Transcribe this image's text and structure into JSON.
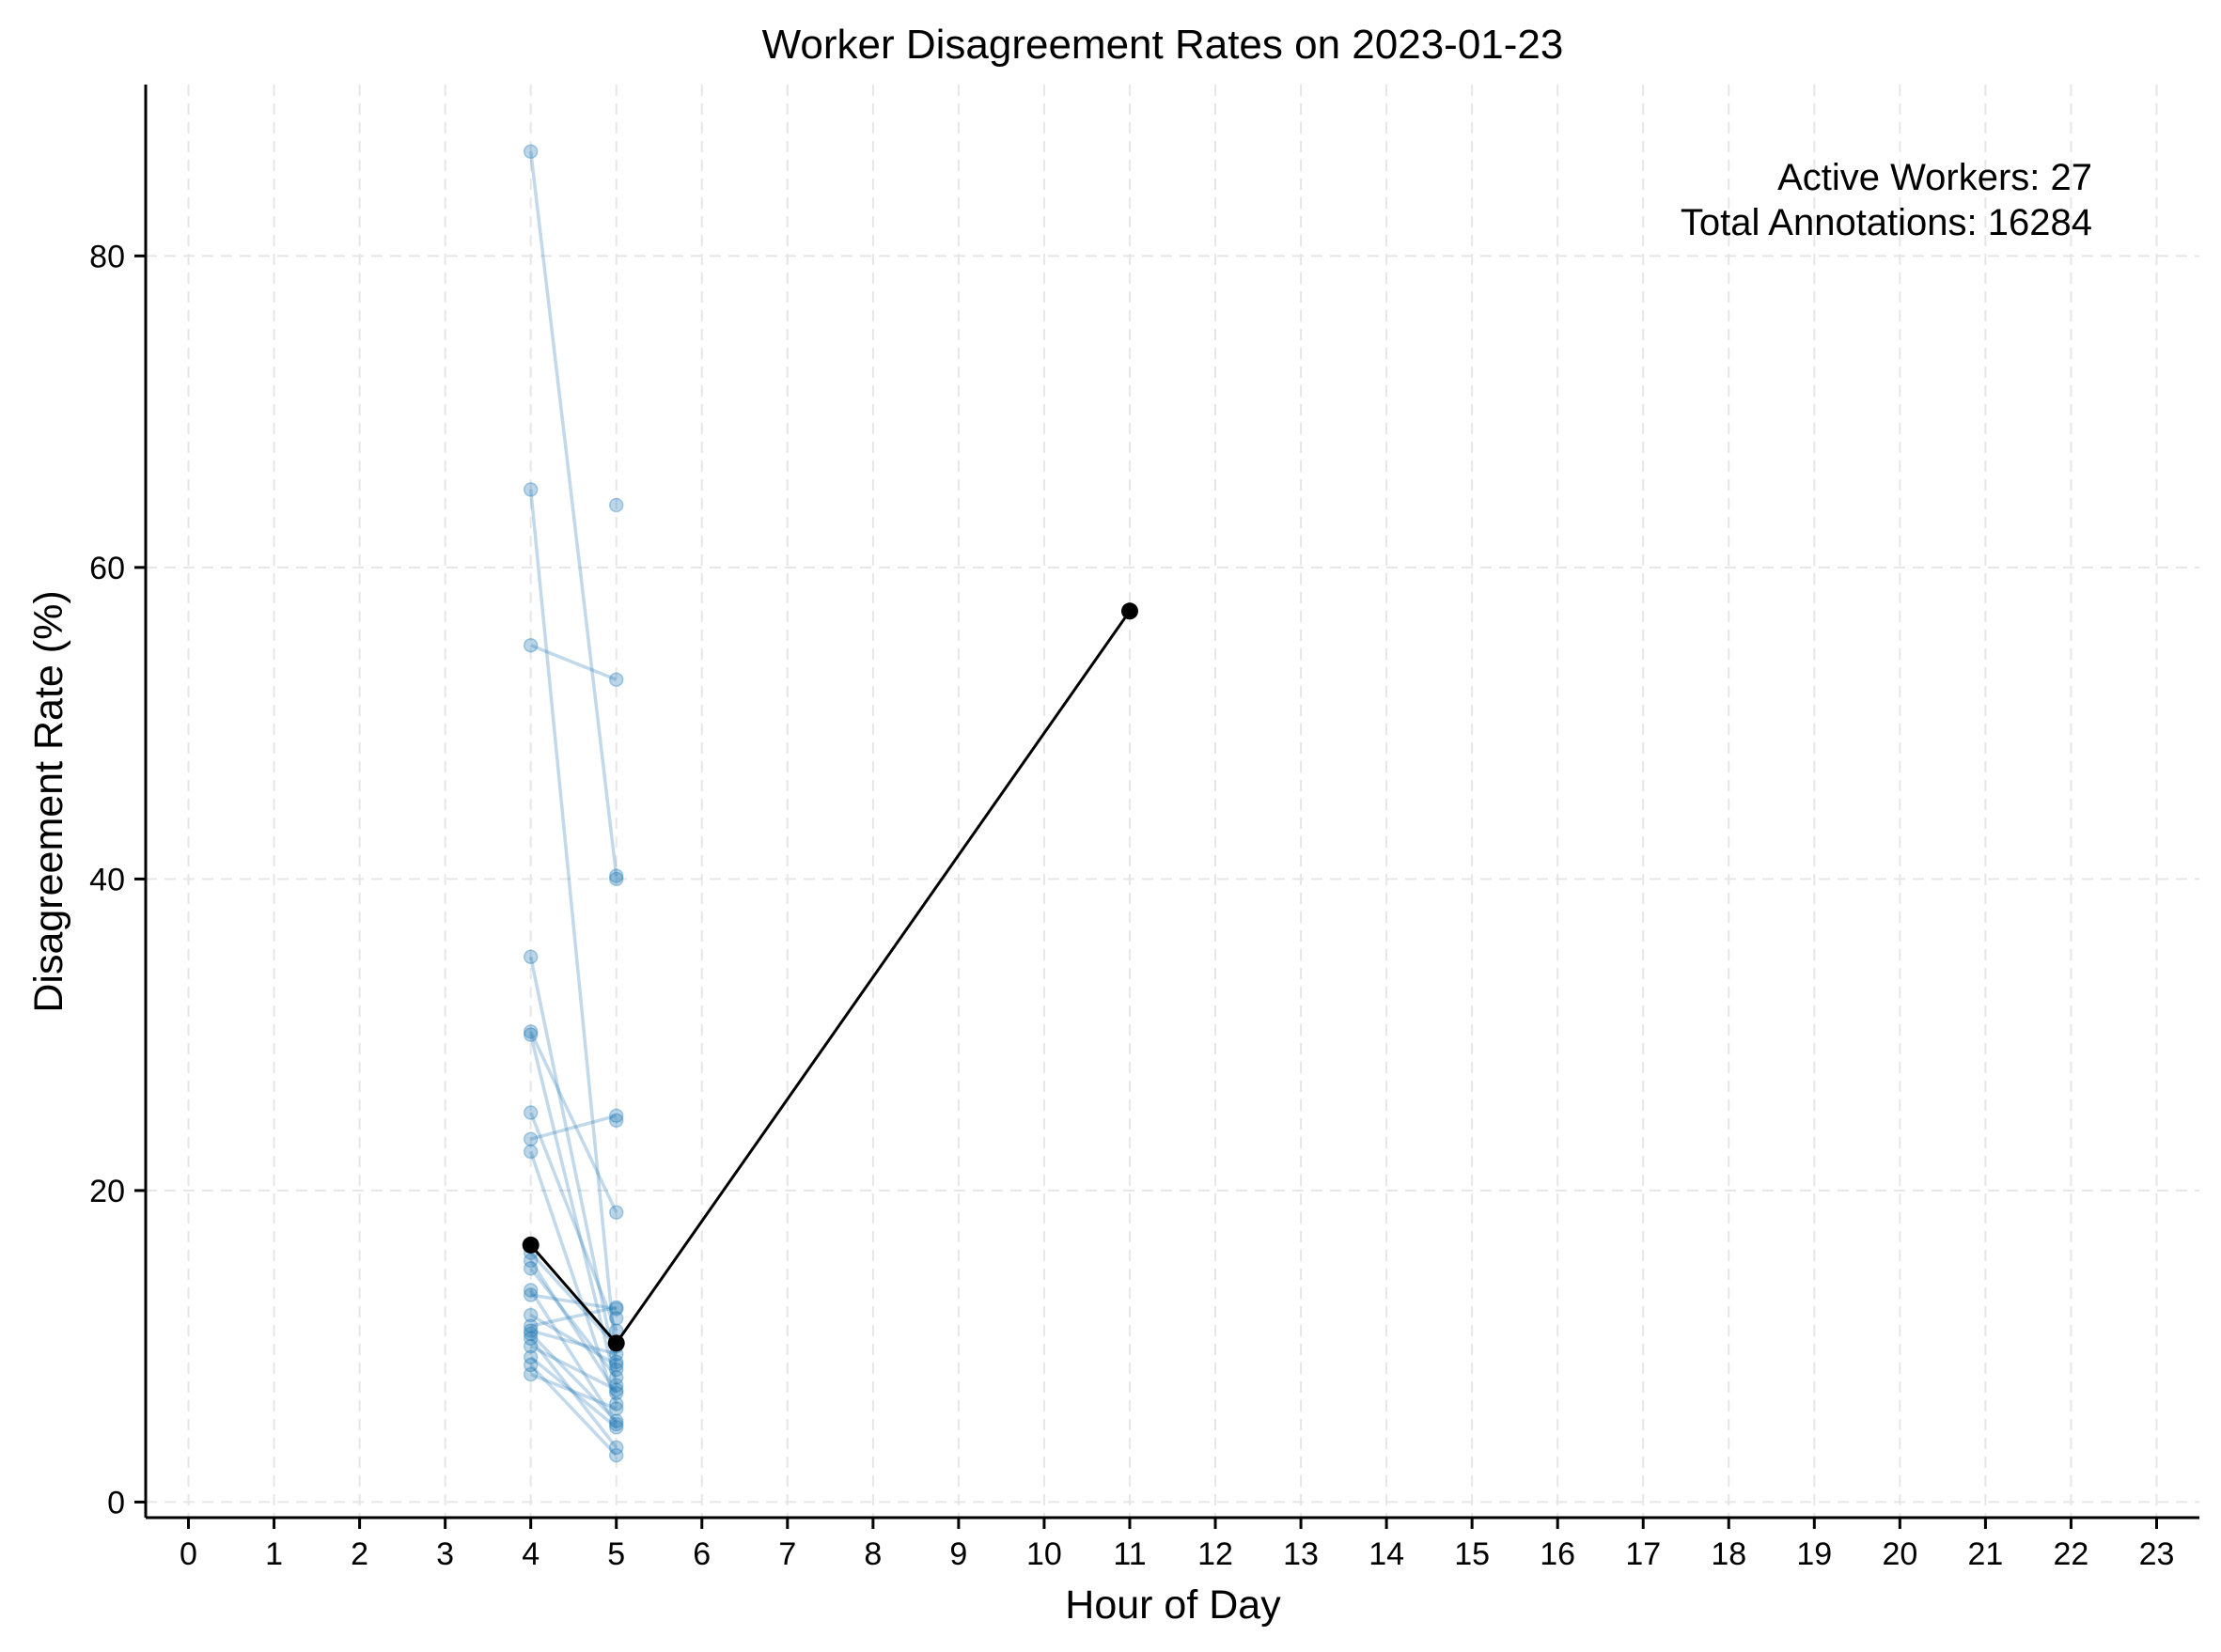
{
  "chart_data": {
    "type": "line",
    "title": "Worker Disagreement Rates on 2023-01-23",
    "xlabel": "Hour of Day",
    "ylabel": "Disagreement Rate (%)",
    "xlim": [
      -0.5,
      23.5
    ],
    "ylim": [
      -1,
      91
    ],
    "xticks": [
      0,
      1,
      2,
      3,
      4,
      5,
      6,
      7,
      8,
      9,
      10,
      11,
      12,
      13,
      14,
      15,
      16,
      17,
      18,
      19,
      20,
      21,
      22,
      23
    ],
    "yticks": [
      0,
      20,
      40,
      60,
      80
    ],
    "grid": true,
    "annotation": {
      "active_workers": "Active Workers: 27",
      "total_annotations": "Total Annotations: 16284"
    },
    "worker_series": [
      {
        "x": [
          4,
          5
        ],
        "y": [
          86.7,
          40.2
        ]
      },
      {
        "x": [
          4,
          5
        ],
        "y": [
          65.0,
          9.0
        ]
      },
      {
        "x": [
          4,
          5
        ],
        "y": [
          55.0,
          52.8
        ]
      },
      {
        "x": [
          4,
          5
        ],
        "y": [
          35.0,
          8.5
        ]
      },
      {
        "x": [
          4,
          5
        ],
        "y": [
          30.2,
          18.6
        ]
      },
      {
        "x": [
          4,
          5
        ],
        "y": [
          30.0,
          7.5
        ]
      },
      {
        "x": [
          4,
          5
        ],
        "y": [
          25.0,
          11.0
        ]
      },
      {
        "x": [
          4,
          5
        ],
        "y": [
          23.3,
          24.8
        ]
      },
      {
        "x": [
          4,
          5
        ],
        "y": [
          22.5,
          6.3
        ]
      },
      {
        "x": [
          4,
          5
        ],
        "y": [
          16.0,
          10.0
        ]
      },
      {
        "x": [
          4,
          5
        ],
        "y": [
          15.5,
          7.0
        ]
      },
      {
        "x": [
          4,
          5
        ],
        "y": [
          15.0,
          8.0
        ]
      },
      {
        "x": [
          4,
          5
        ],
        "y": [
          13.6,
          5.0
        ]
      },
      {
        "x": [
          4,
          5
        ],
        "y": [
          13.3,
          12.4
        ]
      },
      {
        "x": [
          4,
          5
        ],
        "y": [
          12.0,
          8.8
        ]
      },
      {
        "x": [
          4,
          5
        ],
        "y": [
          11.3,
          12.5
        ]
      },
      {
        "x": [
          4,
          5
        ],
        "y": [
          11.0,
          9.5
        ]
      },
      {
        "x": [
          4,
          5
        ],
        "y": [
          10.8,
          5.2
        ]
      },
      {
        "x": [
          4,
          5
        ],
        "y": [
          10.5,
          3.5
        ]
      },
      {
        "x": [
          4,
          5
        ],
        "y": [
          10.0,
          7.2
        ]
      },
      {
        "x": [
          4,
          5
        ],
        "y": [
          9.3,
          4.8
        ]
      },
      {
        "x": [
          4,
          5
        ],
        "y": [
          8.8,
          3.0
        ]
      },
      {
        "x": [
          4,
          5
        ],
        "y": [
          8.2,
          6.0
        ]
      },
      {
        "x": [
          5
        ],
        "y": [
          64.0
        ]
      },
      {
        "x": [
          5
        ],
        "y": [
          40.0
        ]
      },
      {
        "x": [
          5
        ],
        "y": [
          24.5
        ]
      },
      {
        "x": [
          5
        ],
        "y": [
          11.8
        ]
      }
    ],
    "mean_series": {
      "x": [
        4,
        5,
        11
      ],
      "y": [
        16.5,
        10.2,
        57.2
      ]
    }
  }
}
